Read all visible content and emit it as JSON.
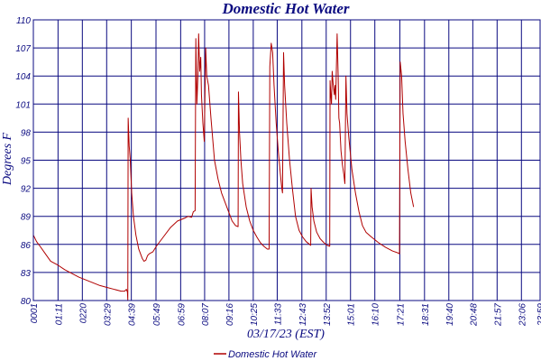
{
  "chart_data": {
    "type": "line",
    "title": "Domestic Hot Water",
    "xlabel": "03/17/23 (EST)",
    "ylabel": "Degrees F",
    "ylim": [
      80,
      110
    ],
    "y_ticks": [
      "80",
      "83",
      "86",
      "89",
      "92",
      "95",
      "98",
      "101",
      "104",
      "107",
      "110"
    ],
    "x_ticks": [
      "0001",
      "01:11",
      "0220",
      "03:29",
      "04:39",
      "05:49",
      "06:59",
      "08:07",
      "09:16",
      "10:25",
      "11:33",
      "12:43",
      "13:52",
      "15:01",
      "16:10",
      "17:21",
      "18:31",
      "19:40",
      "20:48",
      "21:57",
      "23:06",
      "23:59"
    ],
    "x_ticks_minutes": [
      1,
      71,
      140,
      209,
      279,
      349,
      419,
      487,
      556,
      625,
      693,
      763,
      832,
      901,
      970,
      1041,
      1111,
      1180,
      1248,
      1317,
      1386,
      1439
    ],
    "xlim_minutes": [
      1,
      1439
    ],
    "grid": true,
    "legend_position": "bottom",
    "series": [
      {
        "name": "Domestic Hot Water",
        "color": "#b00000",
        "points": [
          [
            1,
            87.0
          ],
          [
            10,
            86.3
          ],
          [
            20,
            85.8
          ],
          [
            35,
            85.0
          ],
          [
            50,
            84.2
          ],
          [
            70,
            83.8
          ],
          [
            90,
            83.3
          ],
          [
            110,
            82.9
          ],
          [
            130,
            82.5
          ],
          [
            150,
            82.2
          ],
          [
            170,
            81.9
          ],
          [
            190,
            81.6
          ],
          [
            210,
            81.4
          ],
          [
            230,
            81.2
          ],
          [
            250,
            81.0
          ],
          [
            260,
            81.0
          ],
          [
            265,
            81.2
          ],
          [
            268,
            80.9
          ],
          [
            269,
            80.0
          ],
          [
            270,
            99.5
          ],
          [
            273,
            96.5
          ],
          [
            276,
            95.0
          ],
          [
            280,
            91.5
          ],
          [
            285,
            89.0
          ],
          [
            292,
            87.0
          ],
          [
            300,
            85.5
          ],
          [
            310,
            84.5
          ],
          [
            315,
            84.2
          ],
          [
            320,
            84.3
          ],
          [
            325,
            84.8
          ],
          [
            330,
            85.0
          ],
          [
            340,
            85.2
          ],
          [
            350,
            85.8
          ],
          [
            370,
            86.8
          ],
          [
            390,
            87.8
          ],
          [
            410,
            88.5
          ],
          [
            430,
            88.8
          ],
          [
            440,
            89.0
          ],
          [
            450,
            88.9
          ],
          [
            455,
            89.5
          ],
          [
            460,
            89.6
          ],
          [
            462,
            108.0
          ],
          [
            465,
            101.0
          ],
          [
            468,
            104.0
          ],
          [
            470,
            108.5
          ],
          [
            473,
            104.5
          ],
          [
            476,
            106.0
          ],
          [
            478,
            102.0
          ],
          [
            482,
            99.0
          ],
          [
            486,
            97.0
          ],
          [
            490,
            107.0
          ],
          [
            493,
            104.0
          ],
          [
            498,
            103.0
          ],
          [
            505,
            99.5
          ],
          [
            515,
            95.0
          ],
          [
            525,
            93.0
          ],
          [
            535,
            91.5
          ],
          [
            545,
            90.5
          ],
          [
            555,
            89.5
          ],
          [
            565,
            88.5
          ],
          [
            575,
            88.0
          ],
          [
            582,
            87.9
          ],
          [
            583,
            102.3
          ],
          [
            586,
            98.0
          ],
          [
            590,
            95.0
          ],
          [
            595,
            92.5
          ],
          [
            605,
            90.0
          ],
          [
            615,
            88.5
          ],
          [
            625,
            87.5
          ],
          [
            635,
            86.8
          ],
          [
            645,
            86.2
          ],
          [
            655,
            85.8
          ],
          [
            665,
            85.5
          ],
          [
            670,
            85.5
          ],
          [
            672,
            105.0
          ],
          [
            676,
            107.5
          ],
          [
            680,
            106.5
          ],
          [
            684,
            103.0
          ],
          [
            690,
            99.0
          ],
          [
            696,
            96.0
          ],
          [
            702,
            93.5
          ],
          [
            706,
            92.0
          ],
          [
            708,
            91.5
          ],
          [
            711,
            106.5
          ],
          [
            714,
            103.0
          ],
          [
            720,
            99.0
          ],
          [
            728,
            95.0
          ],
          [
            736,
            92.0
          ],
          [
            745,
            89.0
          ],
          [
            755,
            87.5
          ],
          [
            765,
            86.8
          ],
          [
            775,
            86.3
          ],
          [
            785,
            86.0
          ],
          [
            788,
            85.9
          ],
          [
            789,
            92.0
          ],
          [
            792,
            90.0
          ],
          [
            797,
            88.5
          ],
          [
            805,
            87.3
          ],
          [
            815,
            86.6
          ],
          [
            825,
            86.2
          ],
          [
            835,
            85.9
          ],
          [
            842,
            85.8
          ],
          [
            843,
            103.5
          ],
          [
            845,
            102.0
          ],
          [
            847,
            101.0
          ],
          [
            849,
            104.5
          ],
          [
            852,
            103.0
          ],
          [
            855,
            102.0
          ],
          [
            857,
            103.0
          ],
          [
            859,
            101.5
          ],
          [
            863,
            108.5
          ],
          [
            866,
            104.0
          ],
          [
            868,
            99.5
          ],
          [
            870,
            99.0
          ],
          [
            874,
            96.0
          ],
          [
            878,
            94.5
          ],
          [
            882,
            93.5
          ],
          [
            885,
            92.5
          ],
          [
            888,
            104.0
          ],
          [
            891,
            100.0
          ],
          [
            896,
            97.5
          ],
          [
            905,
            94.0
          ],
          [
            915,
            91.5
          ],
          [
            925,
            89.5
          ],
          [
            935,
            88.0
          ],
          [
            945,
            87.3
          ],
          [
            960,
            86.8
          ],
          [
            980,
            86.2
          ],
          [
            1000,
            85.7
          ],
          [
            1020,
            85.3
          ],
          [
            1035,
            85.1
          ],
          [
            1040,
            85.0
          ],
          [
            1042,
            105.5
          ],
          [
            1046,
            104.0
          ],
          [
            1050,
            100.0
          ],
          [
            1056,
            97.0
          ],
          [
            1064,
            94.0
          ],
          [
            1072,
            91.5
          ],
          [
            1080,
            90.0
          ]
        ]
      }
    ]
  },
  "legend": {
    "label": "Domestic Hot Water"
  }
}
